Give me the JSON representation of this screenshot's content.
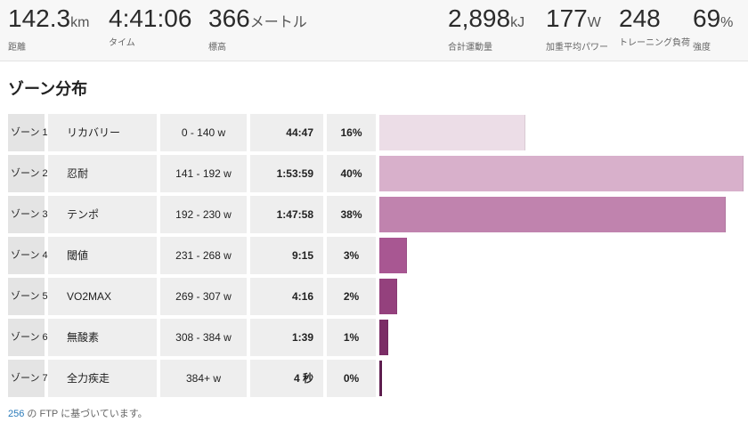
{
  "stats": [
    {
      "value": "142.3",
      "unit": "km",
      "label": "距離"
    },
    {
      "value": "4:41:06",
      "unit": "",
      "label": "タイム"
    },
    {
      "value": "366",
      "unit": "メートル",
      "label": "標高"
    },
    {
      "value": "2,898",
      "unit": "kJ",
      "label": "合計運動量"
    },
    {
      "value": "177",
      "unit": "W",
      "label": "加重平均パワー"
    },
    {
      "value": "248",
      "unit": "",
      "label": "トレーニング負荷"
    },
    {
      "value": "69",
      "unit": "%",
      "label": "強度"
    }
  ],
  "section_title": "ゾーン分布",
  "zones": [
    {
      "zone": "ゾーン 1",
      "name": "リカバリー",
      "range": "0 - 140 w",
      "time": "44:47",
      "pct": "16%",
      "fraction": 0.16,
      "color": "#ecdde7"
    },
    {
      "zone": "ゾーン 2",
      "name": "忍耐",
      "range": "141 - 192 w",
      "time": "1:53:59",
      "pct": "40%",
      "fraction": 0.4,
      "color": "#d8b0cb"
    },
    {
      "zone": "ゾーン 3",
      "name": "テンポ",
      "range": "192 - 230 w",
      "time": "1:47:58",
      "pct": "38%",
      "fraction": 0.38,
      "color": "#c083ae"
    },
    {
      "zone": "ゾーン 4",
      "name": "閾値",
      "range": "231 - 268 w",
      "time": "9:15",
      "pct": "3%",
      "fraction": 0.03,
      "color": "#a85792"
    },
    {
      "zone": "ゾーン 5",
      "name": "VO2MAX",
      "range": "269 - 307 w",
      "time": "4:16",
      "pct": "2%",
      "fraction": 0.02,
      "color": "#94417d"
    },
    {
      "zone": "ゾーン 6",
      "name": "無酸素",
      "range": "308 - 384 w",
      "time": "1:39",
      "pct": "1%",
      "fraction": 0.01,
      "color": "#7b2d66"
    },
    {
      "zone": "ゾーン 7",
      "name": "全力疾走",
      "range": "384+ w",
      "time": "4 秒",
      "pct": "0%",
      "fraction": 0.0025,
      "color": "#611f51"
    }
  ],
  "footnote": {
    "ftp_value": "256",
    "text": " の FTP に基づいています。"
  }
}
